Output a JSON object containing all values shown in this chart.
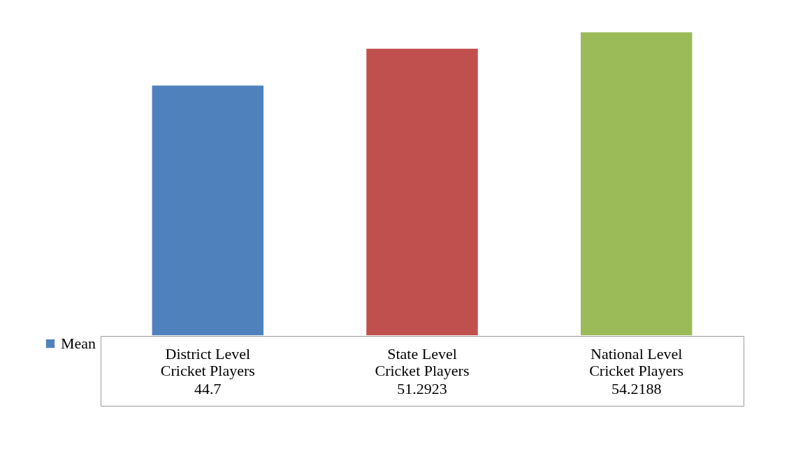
{
  "chart_data": {
    "type": "bar",
    "categories": [
      "District Level Cricket Players",
      "State Level Cricket Players",
      "National Level Cricket Players"
    ],
    "series": [
      {
        "name": "Mean",
        "values": [
          44.7,
          51.2923,
          54.2188
        ]
      }
    ],
    "colors": [
      "#4f81bd",
      "#c0504d",
      "#9bbb59"
    ],
    "data_labels": true,
    "legend": "bottom left",
    "grid": false
  }
}
